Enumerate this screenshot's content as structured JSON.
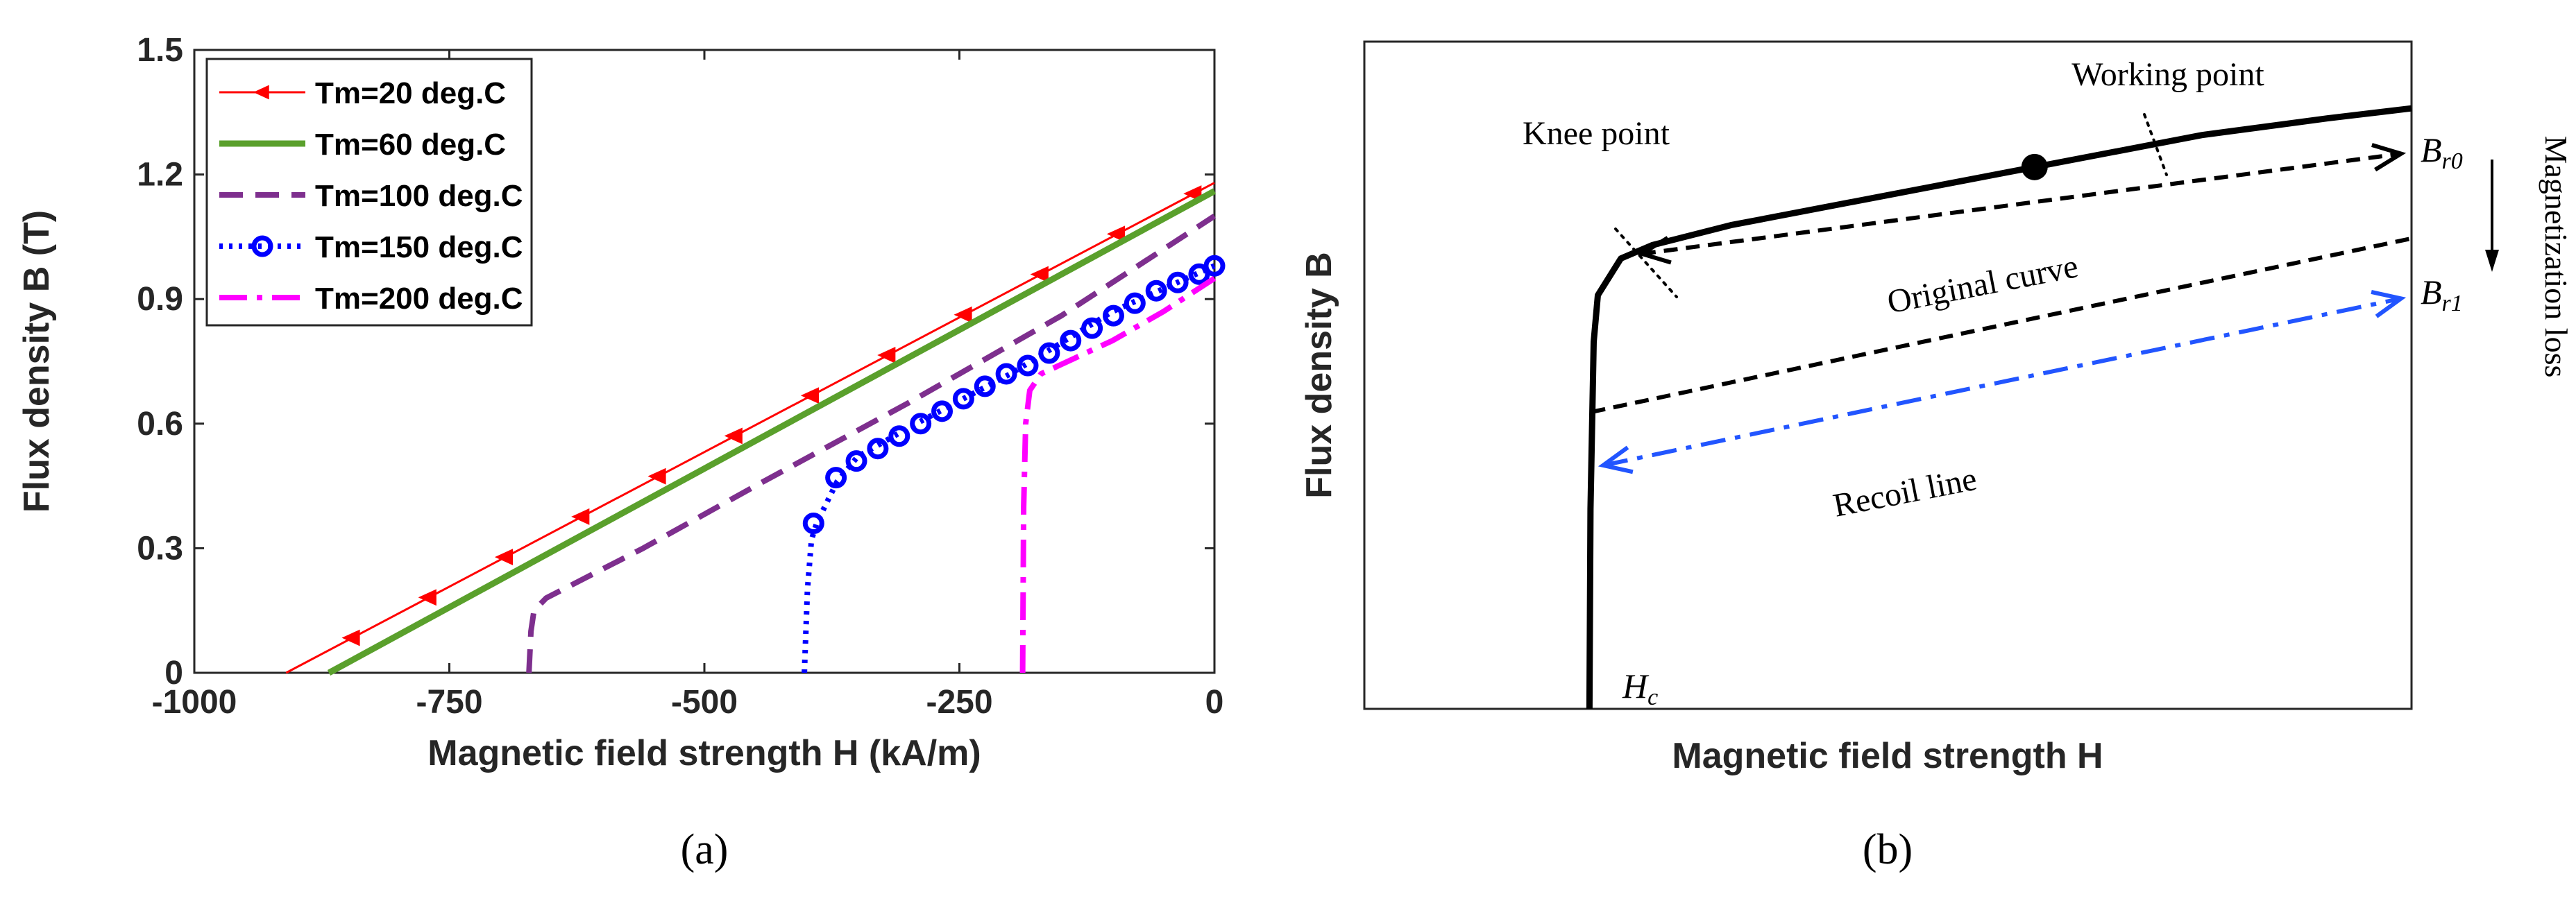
{
  "chart_data": [
    {
      "type": "line",
      "panel_label": "(a)",
      "xlabel": "Magnetic field strength H (kA/m)",
      "ylabel": "Flux density B (T)",
      "xlim": [
        -1000,
        0
      ],
      "ylim": [
        0,
        1.5
      ],
      "xticks": [
        -1000,
        -750,
        -500,
        -250,
        0
      ],
      "xtick_labels": [
        "-1000",
        "-750",
        "-500",
        "-250",
        "0"
      ],
      "yticks": [
        0,
        0.3,
        0.6,
        0.9,
        1.2,
        1.5
      ],
      "ytick_labels": [
        "0",
        "0.3",
        "0.6",
        "0.9",
        "1.2",
        "1.5"
      ],
      "grid": false,
      "legend_position": "top-left",
      "series": [
        {
          "name": "Tm=20 deg.C",
          "color": "#ff0000",
          "line_style": "solid",
          "marker": "left-triangle",
          "points": [
            [
              -910,
              0
            ],
            [
              0,
              1.18
            ]
          ],
          "marker_x": [
            -845,
            -770,
            -695,
            -620,
            -545,
            -470,
            -395,
            -320,
            -245,
            -170,
            -95,
            -20
          ]
        },
        {
          "name": "Tm=60 deg.C",
          "color": "#5aa02c",
          "line_style": "solid-thick",
          "marker": "none",
          "points": [
            [
              -868,
              0
            ],
            [
              0,
              1.16
            ]
          ]
        },
        {
          "name": "Tm=100 deg.C",
          "color": "#7e2f8e",
          "line_style": "dashed",
          "marker": "none",
          "points": [
            [
              -672,
              0
            ],
            [
              -670,
              0.1
            ],
            [
              -667,
              0.15
            ],
            [
              -655,
              0.18
            ],
            [
              -560,
              0.3
            ],
            [
              -450,
              0.45
            ],
            [
              -300,
              0.65
            ],
            [
              -150,
              0.86
            ],
            [
              0,
              1.1
            ]
          ]
        },
        {
          "name": "Tm=150 deg.C",
          "color": "#0000ff",
          "line_style": "dotted",
          "marker": "circle",
          "points": [
            [
              -402,
              0
            ],
            [
              -399,
              0.2
            ],
            [
              -395,
              0.32
            ],
            [
              -390,
              0.36
            ],
            [
              -370,
              0.46
            ],
            [
              -350,
              0.52
            ],
            [
              -300,
              0.59
            ],
            [
              -200,
              0.72
            ],
            [
              -100,
              0.87
            ],
            [
              0,
              0.98
            ]
          ],
          "marker_points": [
            [
              -393,
              0.36
            ],
            [
              -371,
              0.47
            ],
            [
              -351,
              0.51
            ],
            [
              -330,
              0.54
            ],
            [
              -309,
              0.57
            ],
            [
              -288,
              0.6
            ],
            [
              -267,
              0.63
            ],
            [
              -246,
              0.66
            ],
            [
              -225,
              0.69
            ],
            [
              -204,
              0.72
            ],
            [
              -183,
              0.74
            ],
            [
              -162,
              0.77
            ],
            [
              -141,
              0.8
            ],
            [
              -120,
              0.83
            ],
            [
              -99,
              0.86
            ],
            [
              -78,
              0.89
            ],
            [
              -57,
              0.92
            ],
            [
              -36,
              0.94
            ],
            [
              -15,
              0.96
            ],
            [
              0,
              0.98
            ]
          ]
        },
        {
          "name": "Tm=200 deg.C",
          "color": "#ff00ff",
          "line_style": "dash-dot",
          "marker": "none",
          "points": [
            [
              -188,
              0
            ],
            [
              -187,
              0.4
            ],
            [
              -185,
              0.6
            ],
            [
              -181,
              0.68
            ],
            [
              -170,
              0.72
            ],
            [
              -100,
              0.8
            ],
            [
              -50,
              0.87
            ],
            [
              0,
              0.95
            ]
          ]
        }
      ]
    },
    {
      "type": "line",
      "panel_label": "(b)",
      "xlabel": "Magnetic field strength H",
      "ylabel": "Flux density B",
      "grid": false,
      "axes_ticks": false,
      "xlim": [
        0,
        100
      ],
      "ylim": [
        0,
        100
      ],
      "series": [
        {
          "role": "original-curve",
          "color": "#000000",
          "line_style": "solid-thick",
          "points": [
            [
              21.5,
              0
            ],
            [
              21.6,
              30
            ],
            [
              21.9,
              55
            ],
            [
              22.3,
              62
            ],
            [
              24.5,
              67.5
            ],
            [
              27.5,
              69.5
            ],
            [
              35,
              72.5
            ],
            [
              50,
              77
            ],
            [
              65,
              81.5
            ],
            [
              80,
              86
            ],
            [
              92,
              88.5
            ],
            [
              100,
              90
            ]
          ]
        },
        {
          "role": "original-arrow",
          "color": "#000000",
          "line_style": "dashed",
          "points": [
            [
              26.5,
              68.2
            ],
            [
              99,
              83.2
            ]
          ],
          "arrowheads": "both"
        },
        {
          "role": "recoil-line",
          "color": "#000000",
          "line_style": "dashed",
          "points": [
            [
              21.7,
              44.5
            ],
            [
              100,
              70.5
            ]
          ]
        },
        {
          "role": "recoil-arrow",
          "color": "#2255ff",
          "line_style": "dash-dot",
          "points": [
            [
              22.8,
              36.5
            ],
            [
              99,
              61.5
            ]
          ],
          "arrowheads": "both"
        }
      ],
      "working_point": [
        64,
        81.2
      ],
      "knee_point": [
        24.5,
        67.5
      ],
      "annotations": {
        "working_point": "Working point",
        "knee_point": "Knee point",
        "original_curve": "Original curve",
        "recoil_line": "Recoil line",
        "br0": "B",
        "br0_sub": "r0",
        "br1": "B",
        "br1_sub": "r1",
        "hc": "H",
        "hc_sub": "c",
        "magnetization_loss": "Magnetization loss"
      }
    }
  ]
}
